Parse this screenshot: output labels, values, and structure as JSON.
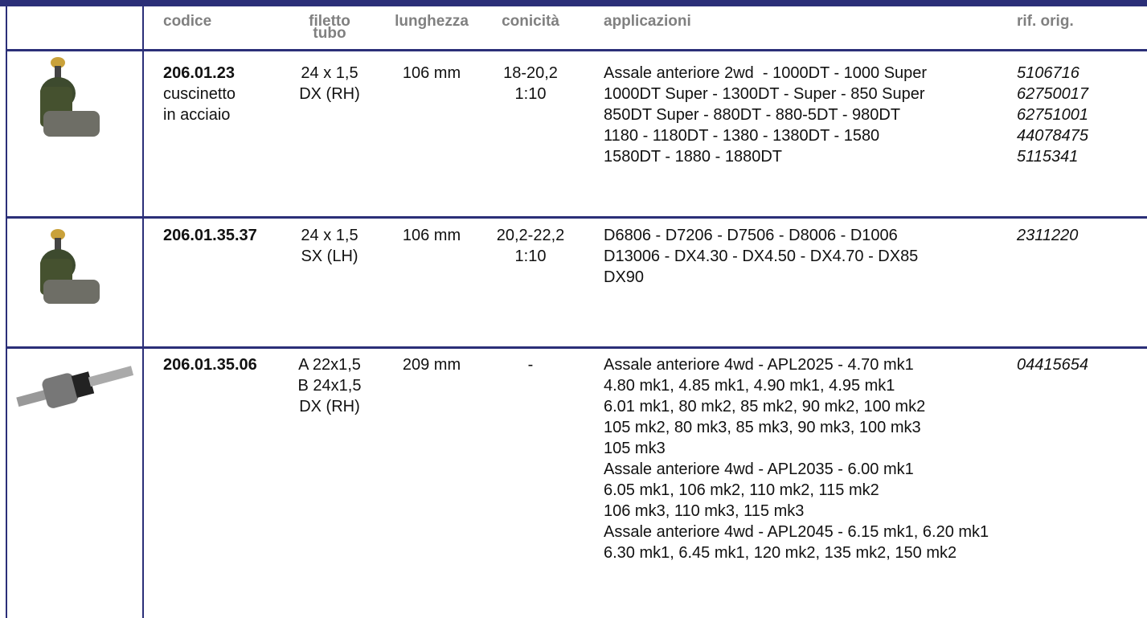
{
  "table": {
    "header": [
      [
        "codice"
      ],
      [
        "filetto",
        "tubo"
      ],
      [
        "lunghezza"
      ],
      [
        "conicità"
      ],
      [
        "applicazioni"
      ],
      [
        "rif. orig."
      ]
    ],
    "rows": [
      {
        "codice": "206.01.23",
        "note": [
          "cuscinetto",
          "in acciaio"
        ],
        "filetto": [
          "24 x 1,5",
          "DX (RH)"
        ],
        "lunghezza": [
          "106 mm"
        ],
        "conicita": [
          "18-20,2",
          "1:10"
        ],
        "applicazioni": [
          "Assale anteriore 2wd  - 1000DT - 1000 Super",
          "1000DT Super - 1300DT - Super - 850 Super",
          "850DT Super - 880DT - 880-5DT - 980DT",
          "1180 - 1180DT - 1380 - 1380DT - 1580",
          "1580DT - 1880 - 1880DT"
        ],
        "rif": [
          "5106716",
          "62750017",
          "62751001",
          "44078475",
          "5115341"
        ]
      },
      {
        "codice": "206.01.35.37",
        "note": [],
        "filetto": [
          "24 x 1,5",
          "SX (LH)"
        ],
        "lunghezza": [
          "106 mm"
        ],
        "conicita": [
          "20,2-22,2",
          "1:10"
        ],
        "applicazioni": [
          "D6806 - D7206 - D7506 - D8006 - D1006",
          "D13006 - DX4.30 - DX4.50 - DX4.70 - DX85",
          "DX90"
        ],
        "rif": [
          "2311220"
        ]
      },
      {
        "codice": "206.01.35.06",
        "note": [],
        "filetto": [
          "A 22x1,5",
          "B 24x1,5",
          "DX (RH)"
        ],
        "lunghezza": [
          "209 mm"
        ],
        "conicita": [
          "-"
        ],
        "applicazioni": [
          "Assale anteriore 4wd - APL2025 - 4.70 mk1",
          "4.80 mk1, 4.85 mk1, 4.90 mk1, 4.95 mk1",
          "6.01 mk1, 80 mk2, 85 mk2, 90 mk2, 100 mk2",
          "105 mk2, 80 mk3, 85 mk3, 90 mk3, 100 mk3",
          "105 mk3",
          "Assale anteriore 4wd - APL2035 - 6.00 mk1",
          "6.05 mk1, 106 mk2, 110 mk2, 115 mk2",
          "106 mk3, 110 mk3, 115 mk3",
          "Assale anteriore 4wd - APL2045 - 6.15 mk1, 6.20 mk1",
          "6.30 mk1, 6.45 mk1, 120 mk2, 135 mk2, 150 mk2"
        ],
        "rif": [
          "04415654"
        ]
      }
    ]
  }
}
